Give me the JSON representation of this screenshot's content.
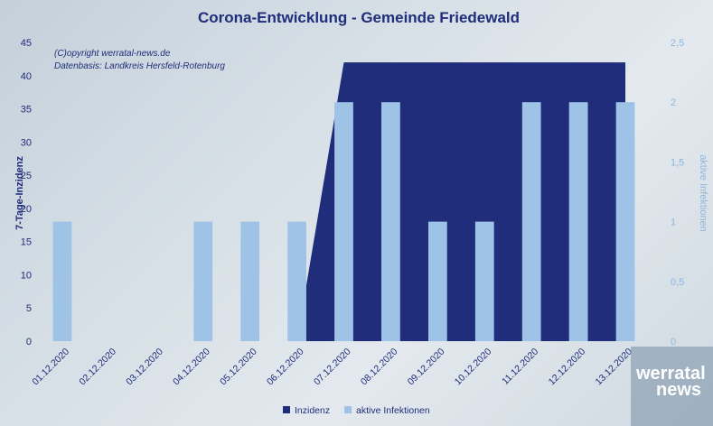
{
  "chart_data": {
    "type": "bar",
    "title": "Corona-Entwicklung - Gemeinde Friedewald",
    "categories": [
      "01.12.2020",
      "02.12.2020",
      "03.12.2020",
      "04.12.2020",
      "05.12.2020",
      "06.12.2020",
      "07.12.2020",
      "08.12.2020",
      "09.12.2020",
      "10.12.2020",
      "11.12.2020",
      "12.12.2020",
      "13.12.2020"
    ],
    "series": [
      {
        "name": "Inzidenz",
        "type": "area",
        "axis": "left",
        "color": "#1f2d7a",
        "values": [
          0,
          0,
          0,
          0,
          0,
          0,
          42,
          42,
          42,
          42,
          42,
          42,
          42
        ]
      },
      {
        "name": "aktive Infektionen",
        "type": "bar",
        "axis": "right",
        "color": "#9fc3e7",
        "values": [
          1,
          0,
          0,
          1,
          1,
          1,
          2,
          2,
          1,
          1,
          2,
          2,
          2
        ]
      }
    ],
    "ylabel": "7-Tage-Inzidenz",
    "ylim": [
      0,
      45
    ],
    "yticks": [
      "0",
      "5",
      "10",
      "15",
      "20",
      "25",
      "30",
      "35",
      "40",
      "45"
    ],
    "y2label": "aktive Infektionen",
    "y2lim": [
      0,
      2.5
    ],
    "y2ticks": [
      "0",
      "0,5",
      "1",
      "1,5",
      "2",
      "2,5"
    ],
    "grid": false,
    "legend": "bottom"
  },
  "credit": {
    "line1": "(C)opyright werratal-news.de",
    "line2": "Datenbasis: Landkreis Hersfeld-Rotenburg"
  },
  "logo": {
    "line1": "werratal",
    "line2": "news"
  }
}
